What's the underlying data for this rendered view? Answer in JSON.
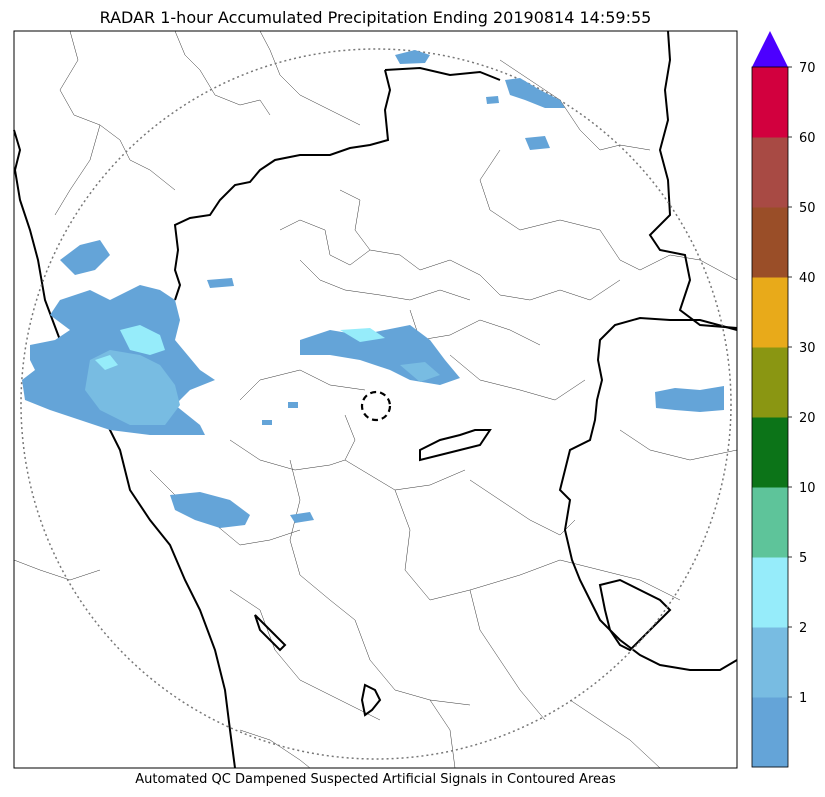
{
  "map": {
    "title": "RADAR 1-hour Accumulated Precipitation Ending 20190814 14:59:55",
    "footer": "Automated QC Dampened Suspected Artificial Signals in Contoured Areas"
  },
  "colorbar": {
    "labels": [
      "1",
      "2",
      "5",
      "10",
      "20",
      "30",
      "40",
      "50",
      "60",
      "70"
    ],
    "colors": [
      "#64a4d8",
      "#78bce2",
      "#96ecfa",
      "#5ec49a",
      "#0c7418",
      "#8a9612",
      "#e8aa1a",
      "#9a4e28",
      "#a84a44",
      "#d2003e"
    ],
    "extend_color": "#4c00ff"
  },
  "colors": {
    "rain_light": "#64a4d8",
    "rain_mid": "#78bce2",
    "rain_high": "#96ecfa"
  }
}
